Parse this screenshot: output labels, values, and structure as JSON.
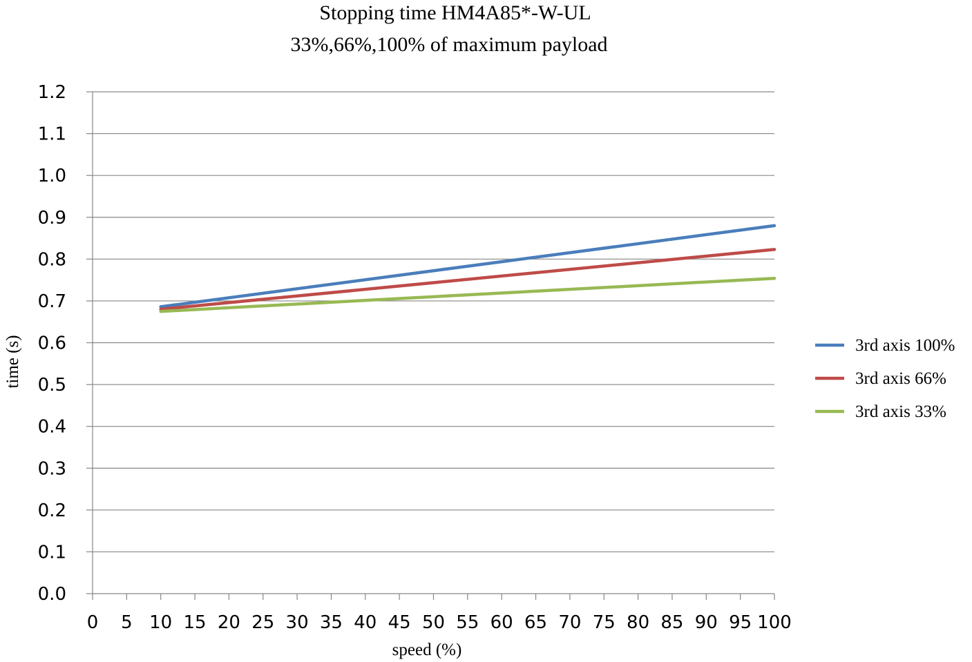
{
  "chart_data": {
    "type": "line",
    "title": "Stopping time HM4A85*-W-UL",
    "subtitle": "33%,66%,100% of maximum payload",
    "xlabel": "speed (%)",
    "ylabel": "time (s)",
    "xlim": [
      0,
      100
    ],
    "ylim": [
      0,
      1.2
    ],
    "x_ticks": [
      "0",
      "5",
      "10",
      "15",
      "20",
      "25",
      "30",
      "35",
      "40",
      "45",
      "50",
      "55",
      "60",
      "65",
      "70",
      "75",
      "80",
      "85",
      "90",
      "95",
      "100"
    ],
    "y_ticks": [
      "0.0",
      "0.1",
      "0.2",
      "0.3",
      "0.4",
      "0.5",
      "0.6",
      "0.7",
      "0.8",
      "0.9",
      "1.0",
      "1.1",
      "1.2"
    ],
    "grid": "horizontal",
    "legend_position": "right",
    "series": [
      {
        "name": "3rd axis 100%",
        "color": "#4a7ebb",
        "x": [
          10,
          100
        ],
        "y": [
          0.686,
          0.88
        ]
      },
      {
        "name": "3rd axis 66%",
        "color": "#be4b48",
        "x": [
          10,
          100
        ],
        "y": [
          0.68,
          0.823
        ]
      },
      {
        "name": "3rd axis 33%",
        "color": "#98b954",
        "x": [
          10,
          100
        ],
        "y": [
          0.675,
          0.754
        ]
      }
    ]
  }
}
